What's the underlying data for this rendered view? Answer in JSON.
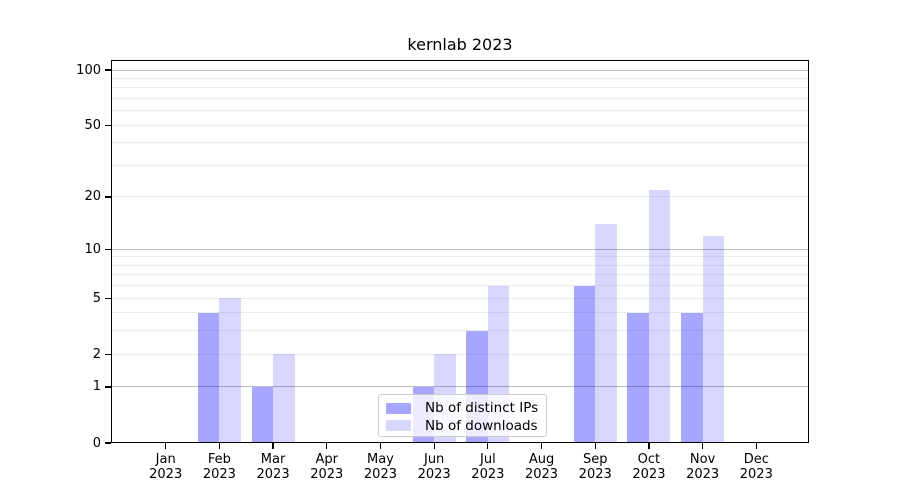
{
  "title": "kernlab 2023",
  "chart_data": {
    "type": "bar",
    "title": "kernlab 2023",
    "categories": [
      "Jan",
      "Feb",
      "Mar",
      "Apr",
      "May",
      "Jun",
      "Jul",
      "Aug",
      "Sep",
      "Oct",
      "Nov",
      "Dec"
    ],
    "category_year": "2023",
    "series": [
      {
        "name": "Nb of distinct IPs",
        "color": "rgba(0,0,255,0.35)",
        "values": [
          0,
          4,
          1,
          0,
          0,
          1,
          3,
          0,
          6,
          4,
          4,
          0
        ]
      },
      {
        "name": "Nb of downloads",
        "color": "rgba(0,0,255,0.16)",
        "values": [
          0,
          5,
          2,
          0,
          0,
          2,
          6,
          0,
          14,
          22,
          12,
          0
        ]
      }
    ],
    "xlabel": "",
    "ylabel": "",
    "yscale": "log1p",
    "ylim": [
      0,
      114
    ],
    "yticks": [
      0,
      1,
      2,
      5,
      10,
      20,
      50,
      100
    ],
    "ytick_labels": [
      "0",
      "1",
      "2",
      "5",
      "10",
      "20",
      "50",
      "100"
    ],
    "minor_gridlines": [
      2,
      3,
      4,
      5,
      6,
      7,
      8,
      9,
      20,
      30,
      40,
      50,
      60,
      70,
      80,
      90
    ],
    "major_gridlines": [
      1,
      10,
      100
    ],
    "grid": true,
    "legend_position": "lower center",
    "colors": {
      "bar_distinct_ips": "#a6a6ff",
      "bar_downloads": "#d9d9ff",
      "minor_grid": "#ececec",
      "major_grid": "#bdbdbd",
      "axis": "#000000",
      "text": "#000000",
      "background": "#ffffff"
    }
  }
}
